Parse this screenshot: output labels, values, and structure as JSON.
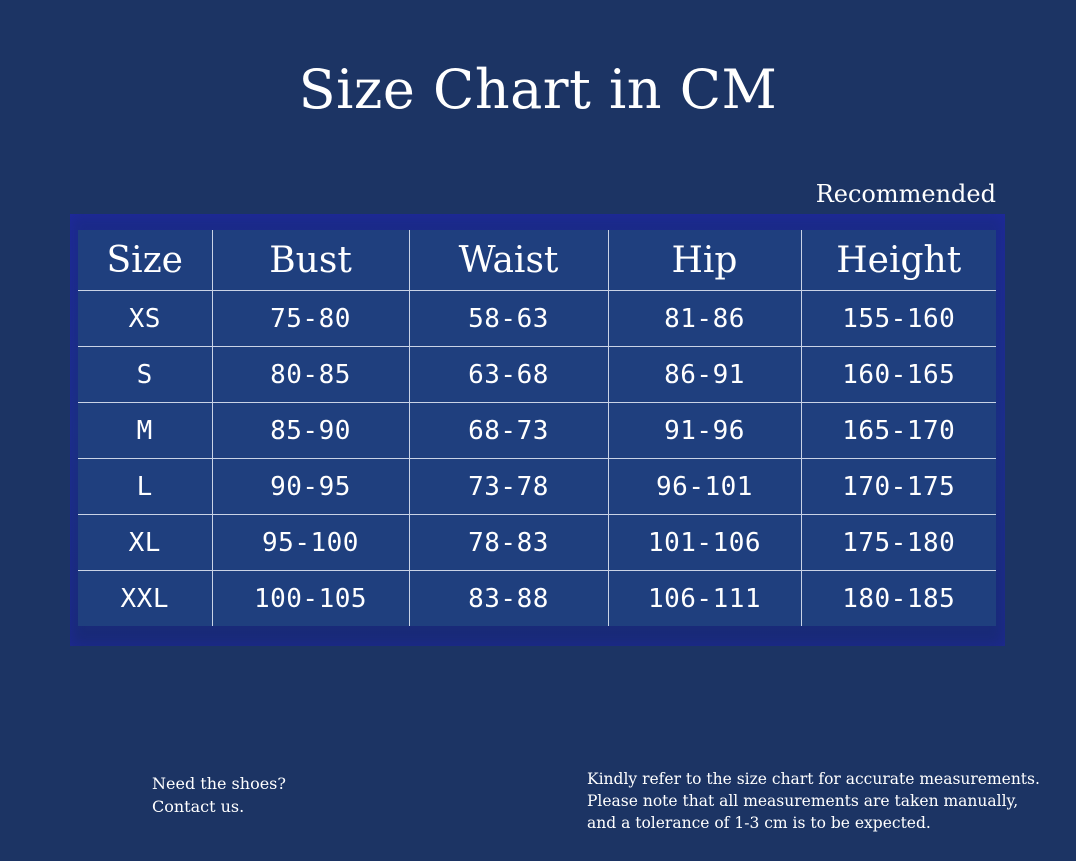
{
  "title": "Size Chart in CM",
  "recommended_label": "Recommended",
  "table": {
    "headers": [
      "Size",
      "Bust",
      "Waist",
      "Hip",
      "Height"
    ],
    "rows": [
      [
        "XS",
        "75-80",
        "58-63",
        "81-86",
        "155-160"
      ],
      [
        "S",
        "80-85",
        "63-68",
        "86-91",
        "160-165"
      ],
      [
        "M",
        "85-90",
        "68-73",
        "91-96",
        "165-170"
      ],
      [
        "L",
        "90-95",
        "73-78",
        "96-101",
        "170-175"
      ],
      [
        "XL",
        "95-100",
        "78-83",
        "101-106",
        "175-180"
      ],
      [
        "XXL",
        "100-105",
        "83-88",
        "106-111",
        "180-185"
      ]
    ]
  },
  "footer_left": {
    "line1": "Need the shoes?",
    "line2": "Contact us."
  },
  "footer_right": {
    "line1": "Kindly refer to the size chart for accurate measurements.",
    "line2": "Please note that all measurements are taken manually,",
    "line3": "and a tolerance of 1-3 cm is to be expected."
  },
  "colors": {
    "background": "#1c3464",
    "table_bg": "#1f3f7e",
    "grid_lines": "#c9d3e6",
    "text": "#ffffff"
  }
}
